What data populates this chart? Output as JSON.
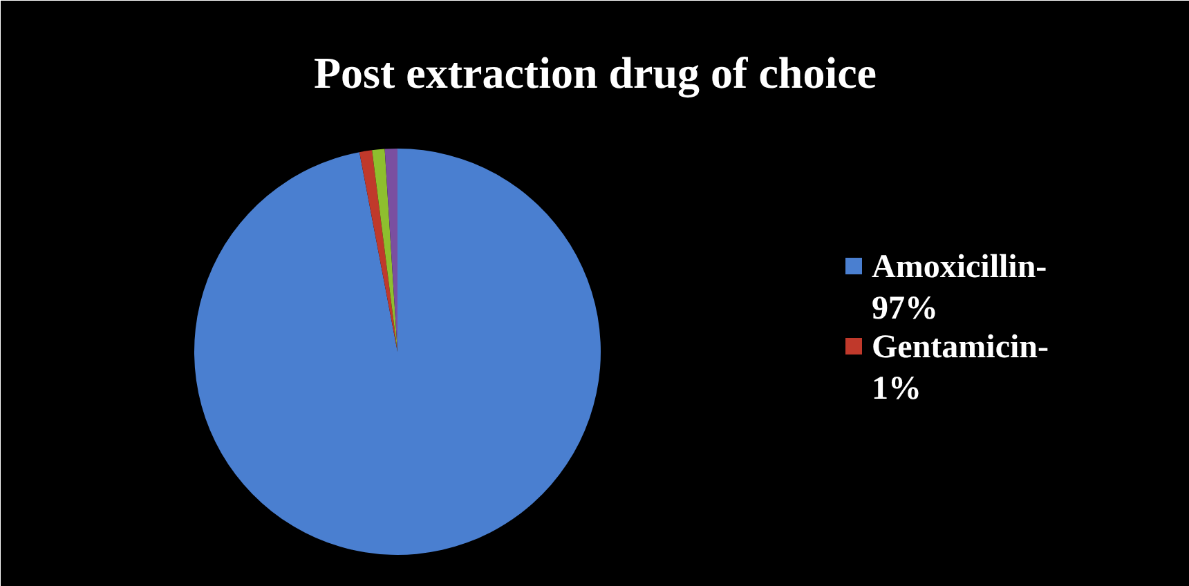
{
  "chart_data": {
    "type": "pie",
    "title": "Post extraction drug of choice",
    "categories": [
      "Amoxicillin-97%",
      "Gentamicin-1%",
      null,
      null
    ],
    "values": [
      97,
      1,
      1,
      1
    ],
    "colors": [
      "#4a7fd0",
      "#c0392b",
      "#8ebf2e",
      "#7a4fa0"
    ],
    "legend": "right"
  }
}
